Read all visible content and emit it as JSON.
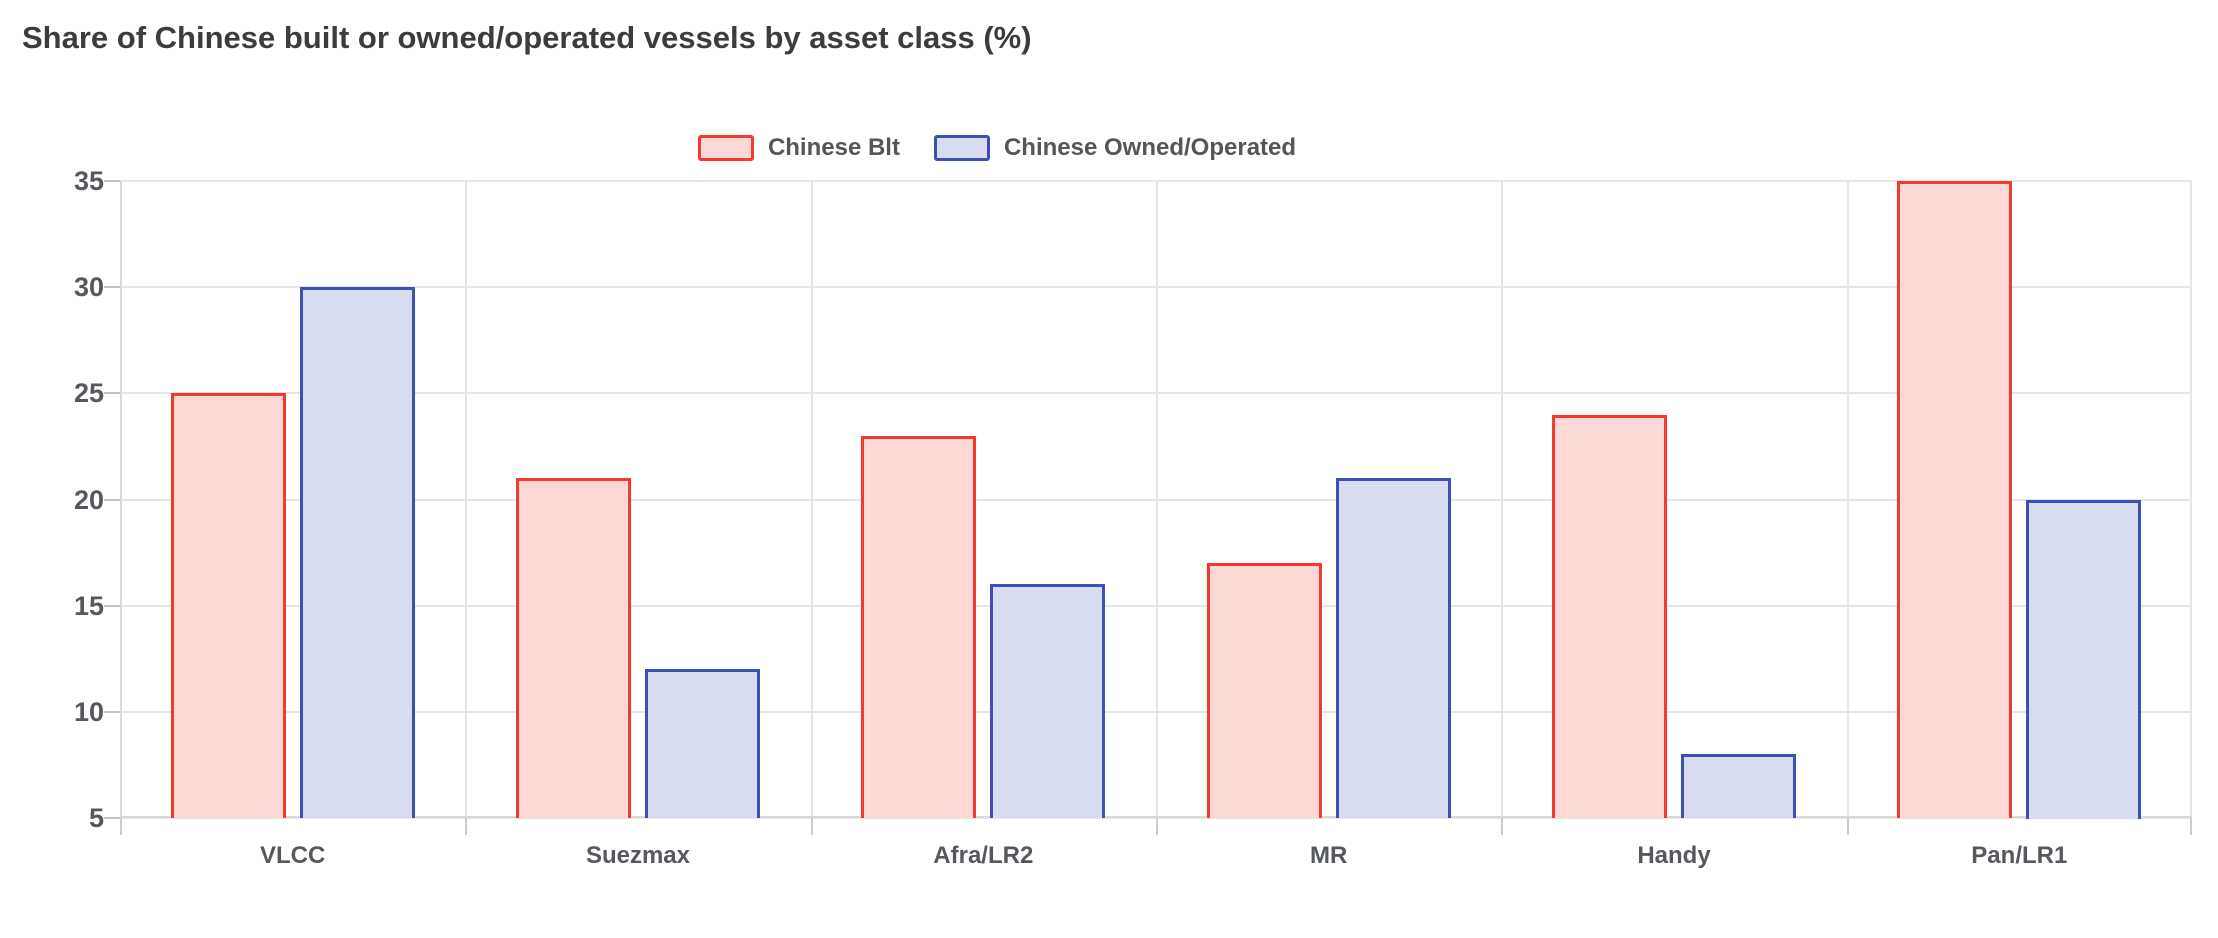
{
  "background": "#ffffff",
  "chart_data": {
    "type": "bar",
    "title": "Share of Chinese built or owned/operated vessels by asset class (%)",
    "categories": [
      "VLCC",
      "Suezmax",
      "Afra/LR2",
      "MR",
      "Handy",
      "Pan/LR1"
    ],
    "series": [
      {
        "name": "Chinese Blt",
        "values": [
          25,
          21,
          23,
          17,
          24,
          35
        ],
        "stroke": "#f23a2e",
        "fill": "#fcd9d5"
      },
      {
        "name": "Chinese Owned/Operated",
        "values": [
          30,
          12,
          16,
          21,
          8,
          20
        ],
        "stroke": "#3d51b5",
        "fill": "#d8dcf0"
      }
    ],
    "xlabel": "",
    "ylabel": "",
    "ylim": [
      5,
      35
    ],
    "y_ticks": [
      5,
      10,
      15,
      20,
      25,
      30,
      35
    ],
    "grid": "on",
    "legend_position": "top-center",
    "text_color": "#55585c",
    "title_color": "#3c3c3c",
    "gridline_color": "#e6e6e6"
  }
}
